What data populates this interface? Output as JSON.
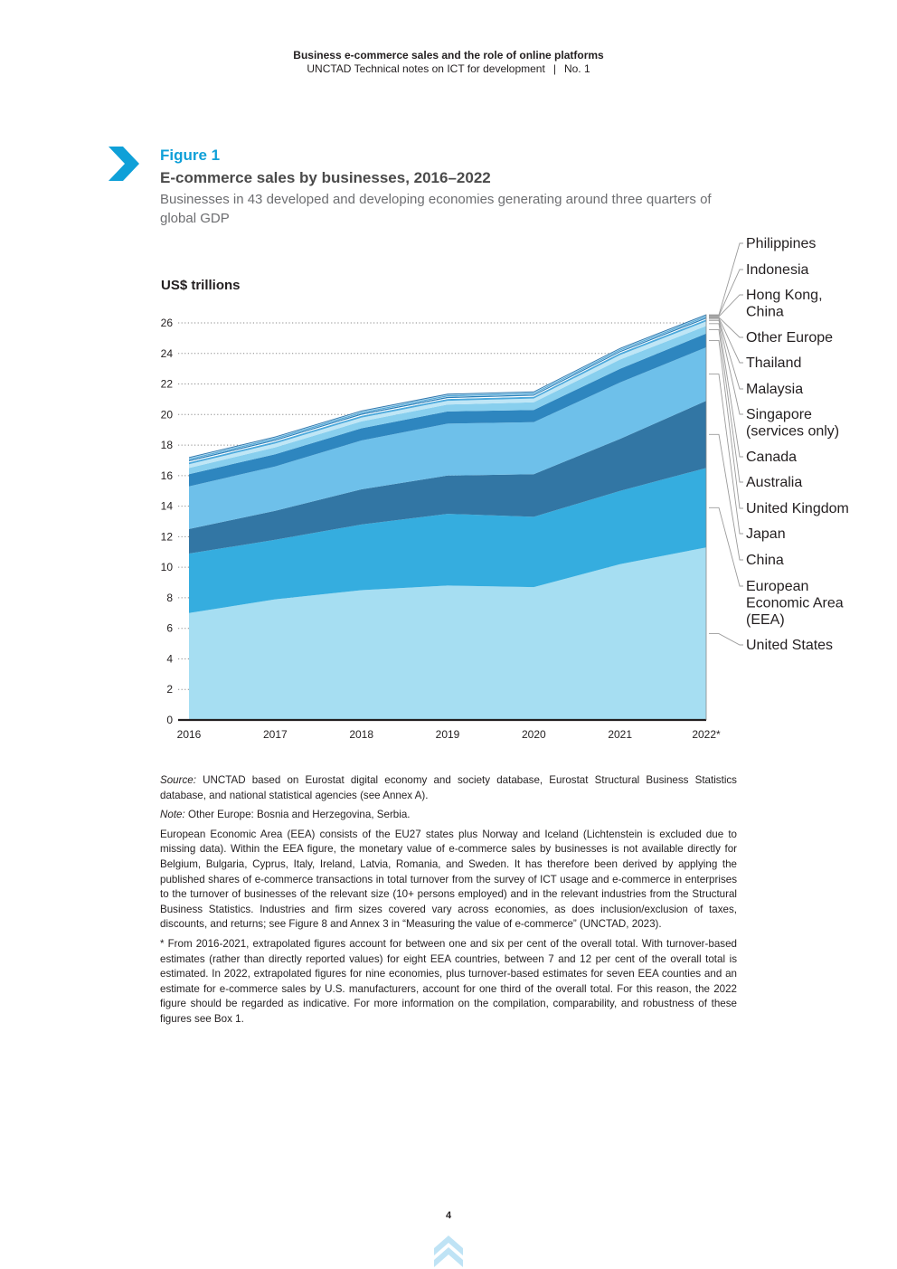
{
  "header": {
    "title": "Business e-commerce sales and the role of online platforms",
    "subtitle": "UNCTAD Technical notes on ICT for development",
    "number": "No. 1"
  },
  "figure": {
    "label": "Figure 1",
    "title": "E-commerce sales by businesses, 2016–2022",
    "subtitle": "Businesses in 43 developed and developing economies generating around three quarters of global GDP"
  },
  "chart_data": {
    "type": "area",
    "stacked": true,
    "title": "E-commerce sales by businesses, 2016–2022",
    "ylabel": "US$ trillions",
    "xlabel": "",
    "x": [
      "2016",
      "2017",
      "2018",
      "2019",
      "2020",
      "2021",
      "2022*"
    ],
    "ylim": [
      0,
      26
    ],
    "yticks": [
      0,
      2,
      4,
      6,
      8,
      10,
      12,
      14,
      16,
      18,
      20,
      22,
      24,
      26
    ],
    "grid": "dotted horizontal",
    "legend_position": "right",
    "series": [
      {
        "name": "United States",
        "values": [
          7.0,
          7.9,
          8.5,
          8.8,
          8.7,
          10.2,
          11.3
        ],
        "color": "#a6def2"
      },
      {
        "name": "European Economic Area (EEA)",
        "values": [
          3.9,
          3.9,
          4.3,
          4.7,
          4.6,
          4.8,
          5.2
        ],
        "color": "#35addf"
      },
      {
        "name": "China",
        "values": [
          1.6,
          1.9,
          2.3,
          2.5,
          2.8,
          3.4,
          4.4
        ],
        "color": "#3276a4"
      },
      {
        "name": "Japan",
        "values": [
          2.8,
          2.9,
          3.2,
          3.4,
          3.4,
          3.7,
          3.5
        ],
        "color": "#6ec0ea"
      },
      {
        "name": "United Kingdom",
        "values": [
          0.8,
          0.8,
          0.8,
          0.8,
          0.8,
          0.9,
          0.9
        ],
        "color": "#2e86bf"
      },
      {
        "name": "Australia",
        "values": [
          0.4,
          0.45,
          0.45,
          0.45,
          0.5,
          0.6,
          0.5
        ],
        "color": "#88cfee"
      },
      {
        "name": "Canada",
        "values": [
          0.25,
          0.25,
          0.25,
          0.25,
          0.25,
          0.3,
          0.3
        ],
        "color": "#bfe6f6"
      },
      {
        "name": "Singapore (services only)",
        "values": [
          0.12,
          0.12,
          0.12,
          0.12,
          0.12,
          0.12,
          0.12
        ],
        "color": "#4ca9dc"
      },
      {
        "name": "Malaysia",
        "values": [
          0.06,
          0.06,
          0.06,
          0.06,
          0.06,
          0.06,
          0.06
        ],
        "color": "#ffffff"
      },
      {
        "name": "Thailand",
        "values": [
          0.08,
          0.08,
          0.08,
          0.08,
          0.08,
          0.08,
          0.08
        ],
        "color": "#2a7fb8"
      },
      {
        "name": "Other Europe",
        "values": [
          0.02,
          0.02,
          0.02,
          0.02,
          0.02,
          0.02,
          0.02
        ],
        "color": "#ffffff"
      },
      {
        "name": "Hong Kong, China",
        "values": [
          0.08,
          0.08,
          0.08,
          0.08,
          0.08,
          0.08,
          0.08
        ],
        "color": "#56a9d8"
      },
      {
        "name": "Indonesia",
        "values": [
          0.04,
          0.04,
          0.04,
          0.04,
          0.04,
          0.04,
          0.04
        ],
        "color": "#b5dff3"
      },
      {
        "name": "Philippines",
        "values": [
          0.06,
          0.06,
          0.06,
          0.06,
          0.06,
          0.06,
          0.06
        ],
        "color": "#2f77ad"
      }
    ],
    "legend": [
      {
        "label": "Philippines",
        "series": 13
      },
      {
        "label": "Indonesia",
        "series": 12
      },
      {
        "label": "Hong Kong, China",
        "series": 11
      },
      {
        "label": "Other Europe",
        "series": 10
      },
      {
        "label": "Thailand",
        "series": 9
      },
      {
        "label": "Malaysia",
        "series": 8
      },
      {
        "label": "Singapore (services only)",
        "series": 7
      },
      {
        "label": "Canada",
        "series": 6
      },
      {
        "label": "Australia",
        "series": 5
      },
      {
        "label": "United Kingdom",
        "series": 4
      },
      {
        "label": "Japan",
        "series": 3
      },
      {
        "label": "China",
        "series": 2
      },
      {
        "label": "European Economic Area (EEA)",
        "series": 1
      },
      {
        "label": "United States",
        "series": 0
      }
    ]
  },
  "notes": {
    "source_label": "Source:",
    "source_text": "UNCTAD based on Eurostat digital economy and society database, Eurostat Structural Business Statistics database, and national statistical agencies (see Annex A).",
    "note_label": "Note:",
    "note_text": "Other Europe: Bosnia and Herzegovina, Serbia.",
    "eea_text": "European Economic Area (EEA) consists of the EU27 states plus Norway and Iceland (Lichtenstein is excluded due to missing data). Within the EEA figure, the monetary value of e-commerce sales by businesses is not available directly for Belgium, Bulgaria, Cyprus, Italy, Ireland, Latvia, Romania, and Sweden. It has therefore been derived by applying the published shares of e-commerce transactions in total turnover from the survey of ICT usage and e-commerce in enterprises to the turnover of businesses of the relevant size (10+ persons employed) and in the relevant industries from the Structural Business Statistics. Industries and firm sizes covered vary across economies, as does inclusion/exclusion of taxes, discounts, and returns; see Figure 8 and Annex 3 in “Measuring the value of e-commerce” (UNCTAD, 2023).",
    "asterisk_text": "* From 2016-2021, extrapolated figures account for between one and six per cent of the overall total. With turnover-based estimates (rather than directly reported values) for eight EEA countries, between 7 and 12 per cent of the overall total is estimated. In 2022, extrapolated figures for nine economies, plus turnover-based estimates for seven EEA counties and an estimate for e-commerce sales by U.S. manufacturers, account for one third of the overall total. For this reason, the 2022 figure should be regarded as indicative. For more information on the compilation, comparability, and robustness of these figures see Box 1."
  },
  "page": {
    "number": "4"
  },
  "icons": {
    "figure_marker": "chevron-right-icon",
    "back_to_top": "double-chevron-up-icon"
  },
  "colors": {
    "accent": "#0fa0d8",
    "subtitle": "#6d6e71"
  }
}
